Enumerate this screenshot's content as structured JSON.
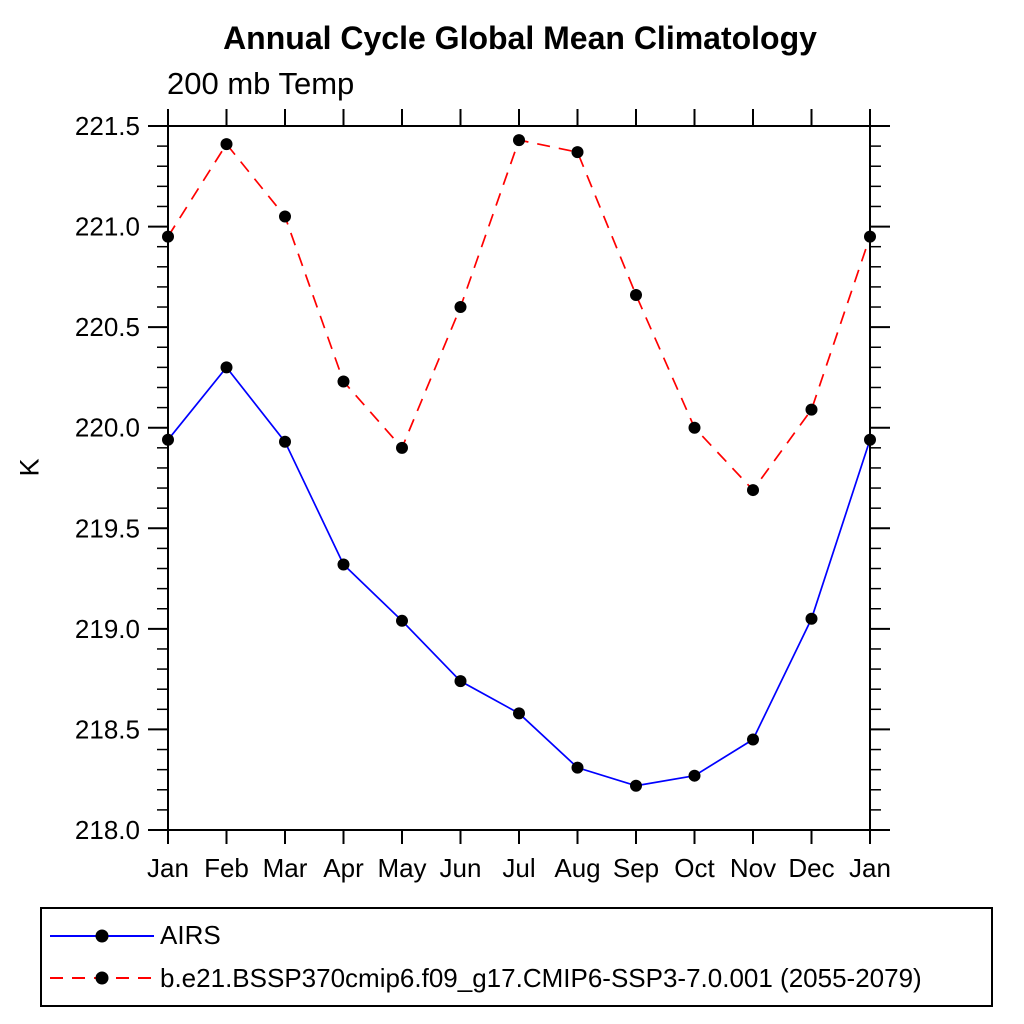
{
  "chart_data": {
    "type": "line",
    "title": "Annual Cycle Global Mean Climatology",
    "subtitle": "200 mb Temp",
    "ylabel": "K",
    "x_categories": [
      "Jan",
      "Feb",
      "Mar",
      "Apr",
      "May",
      "Jun",
      "Jul",
      "Aug",
      "Sep",
      "Oct",
      "Nov",
      "Dec",
      "Jan"
    ],
    "ylim": [
      218.0,
      221.5
    ],
    "y_major_step": 0.5,
    "y_minor_step": 0.1,
    "y_tick_labels": [
      "218.0",
      "218.5",
      "219.0",
      "219.5",
      "220.0",
      "220.5",
      "221.0",
      "221.5"
    ],
    "grid": false,
    "legend_position": "bottom",
    "marker": "filled-circle",
    "marker_color": "#000000",
    "axis_color": "#000000",
    "background_color": "#ffffff",
    "series": [
      {
        "name": "AIRS",
        "color": "#0000ff",
        "line_style": "solid",
        "values": [
          219.94,
          220.3,
          219.93,
          219.32,
          219.04,
          218.74,
          218.58,
          218.31,
          218.22,
          218.27,
          218.45,
          219.05,
          219.94
        ]
      },
      {
        "name": "b.e21.BSSP370cmip6.f09_g17.CMIP6-SSP3-7.0.001 (2055-2079)",
        "color": "#ff0000",
        "line_style": "dashed",
        "values": [
          220.95,
          221.41,
          221.05,
          220.23,
          219.9,
          220.6,
          221.43,
          221.37,
          220.66,
          220.0,
          219.69,
          220.09,
          220.95
        ]
      }
    ]
  }
}
